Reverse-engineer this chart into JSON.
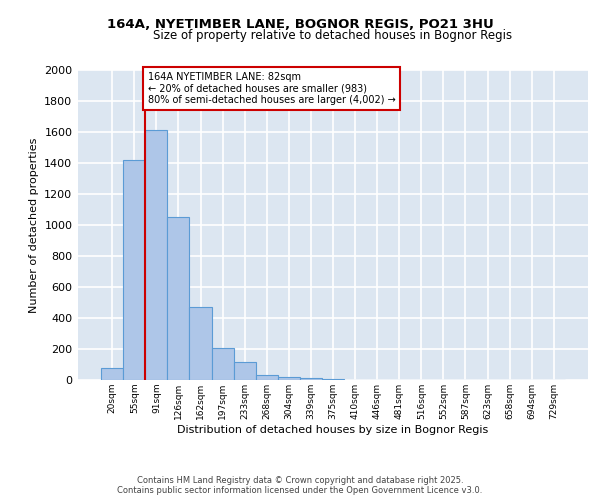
{
  "title_line1": "164A, NYETIMBER LANE, BOGNOR REGIS, PO21 3HU",
  "title_line2": "Size of property relative to detached houses in Bognor Regis",
  "xlabel": "Distribution of detached houses by size in Bognor Regis",
  "ylabel": "Number of detached properties",
  "categories": [
    "20sqm",
    "55sqm",
    "91sqm",
    "126sqm",
    "162sqm",
    "197sqm",
    "233sqm",
    "268sqm",
    "304sqm",
    "339sqm",
    "375sqm",
    "410sqm",
    "446sqm",
    "481sqm",
    "516sqm",
    "552sqm",
    "587sqm",
    "623sqm",
    "658sqm",
    "694sqm",
    "729sqm"
  ],
  "values": [
    80,
    1420,
    1610,
    1050,
    470,
    205,
    115,
    35,
    20,
    12,
    5,
    0,
    0,
    0,
    0,
    0,
    0,
    0,
    0,
    0,
    0
  ],
  "bar_color": "#aec6e8",
  "bar_edge_color": "#5b9bd5",
  "background_color": "#dce6f1",
  "grid_color": "#ffffff",
  "vline_color": "#cc0000",
  "vline_x_index": 1.5,
  "annotation_text_line1": "164A NYETIMBER LANE: 82sqm",
  "annotation_text_line2": "← 20% of detached houses are smaller (983)",
  "annotation_text_line3": "80% of semi-detached houses are larger (4,002) →",
  "annotation_box_edge": "#cc0000",
  "annotation_box_face": "#ffffff",
  "ylim": [
    0,
    2000
  ],
  "yticks": [
    0,
    200,
    400,
    600,
    800,
    1000,
    1200,
    1400,
    1600,
    1800,
    2000
  ],
  "figure_bg": "#ffffff",
  "footer_line1": "Contains HM Land Registry data © Crown copyright and database right 2025.",
  "footer_line2": "Contains public sector information licensed under the Open Government Licence v3.0."
}
